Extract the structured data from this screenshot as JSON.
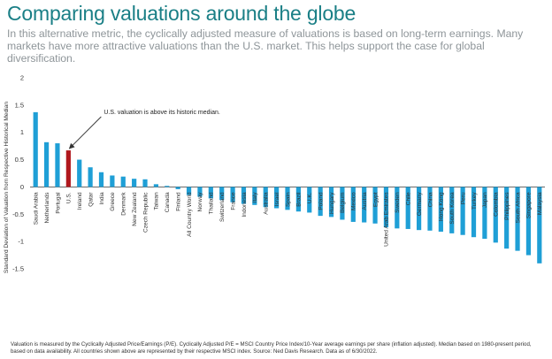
{
  "title": "Comparing valuations around the globe",
  "subtitle": "In this alternative metric, the cyclically adjusted measure of valuations is based on long-term earnings. Many markets have more attractive valuations than the U.S. market. This helps support the case for global diversification.",
  "footnote": "Valuation is measured by the Cyclically Adjusted Price/Earnings (P/E). Cyclically Adjusted P/E = MSCI Country Price Index/10-Year average earnings per share (inflation adjusted). Median based on 1980-present period, based on data availability. All countries shown above are represented by their respective MSCI index. Source: Ned Davis Research. Data as of 6/30/2022.",
  "colors": {
    "bar": "#1f9fd6",
    "highlight": "#b0171d",
    "title": "#1a7f86"
  },
  "chart_data": {
    "type": "bar",
    "title": "",
    "xlabel": "",
    "ylabel": "Standard Deviation of Valuation from Respective Historical Median",
    "ylim": [
      -1.5,
      2
    ],
    "yticks": [
      -1.5,
      -1,
      -0.5,
      0,
      0.5,
      1,
      1.5,
      2
    ],
    "yticklabels": [
      "-1.5",
      "-1",
      "-0.5",
      "0",
      "0.5",
      "1",
      "1.5",
      "2"
    ],
    "grid": false,
    "categories": [
      "Saudi Arabia",
      "Netherlands",
      "Portugal",
      "U.S.",
      "Ireland",
      "Qatar",
      "India",
      "Greece",
      "Denmark",
      "New Zealand",
      "Czech Republic",
      "Taiwan",
      "Canada",
      "Finland",
      "All Country World",
      "Norway",
      "Thailand",
      "Switzerland",
      "France",
      "Indonesia",
      "Italy",
      "Australia",
      "Israel",
      "Spain",
      "Brazil",
      "U.K.",
      "Poland",
      "Hungary",
      "Belgium",
      "Mexico",
      "Austria",
      "Egypt",
      "United Arab Emirates",
      "Sweden",
      "Chile",
      "Germany",
      "China",
      "Hong Kong",
      "South Korea",
      "Peru",
      "Turkey",
      "Japan",
      "Colombia",
      "Philippines",
      "South Africa",
      "Singapore",
      "Malaysia"
    ],
    "values": [
      1.37,
      0.82,
      0.8,
      0.67,
      0.5,
      0.36,
      0.27,
      0.21,
      0.19,
      0.15,
      0.14,
      0.05,
      0.02,
      -0.04,
      -0.15,
      -0.18,
      -0.21,
      -0.24,
      -0.28,
      -0.31,
      -0.33,
      -0.37,
      -0.39,
      -0.42,
      -0.45,
      -0.47,
      -0.53,
      -0.55,
      -0.6,
      -0.64,
      -0.65,
      -0.67,
      -0.74,
      -0.76,
      -0.77,
      -0.79,
      -0.8,
      -0.82,
      -0.85,
      -0.88,
      -0.92,
      -0.95,
      -1.02,
      -1.13,
      -1.17,
      -1.25,
      -1.4
    ],
    "highlight_category": "U.S.",
    "annotations": [
      {
        "text": "U.S. valuation is above its historic median.",
        "target": "U.S."
      }
    ]
  }
}
